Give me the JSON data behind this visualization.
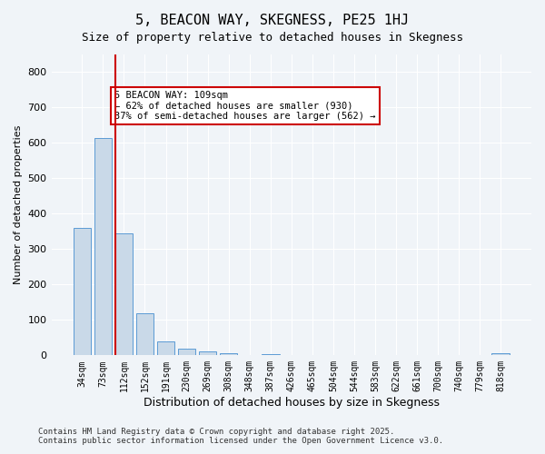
{
  "title": "5, BEACON WAY, SKEGNESS, PE25 1HJ",
  "subtitle": "Size of property relative to detached houses in Skegness",
  "xlabel": "Distribution of detached houses by size in Skegness",
  "ylabel": "Number of detached properties",
  "categories": [
    "34sqm",
    "73sqm",
    "112sqm",
    "152sqm",
    "191sqm",
    "230sqm",
    "269sqm",
    "308sqm",
    "348sqm",
    "387sqm",
    "426sqm",
    "465sqm",
    "504sqm",
    "544sqm",
    "583sqm",
    "622sqm",
    "661sqm",
    "700sqm",
    "740sqm",
    "779sqm",
    "818sqm"
  ],
  "values": [
    360,
    615,
    345,
    118,
    40,
    18,
    12,
    5,
    2,
    3,
    0,
    0,
    0,
    0,
    0,
    0,
    0,
    0,
    0,
    0,
    5
  ],
  "bar_color": "#c9d9e8",
  "bar_edge_color": "#5b9bd5",
  "vline_x": 2,
  "vline_color": "#cc0000",
  "annotation_text": "5 BEACON WAY: 109sqm\n← 62% of detached houses are smaller (930)\n37% of semi-detached houses are larger (562) →",
  "annotation_box_color": "#ffffff",
  "annotation_box_edge": "#cc0000",
  "background_color": "#f0f4f8",
  "grid_color": "#ffffff",
  "ylim": [
    0,
    850
  ],
  "yticks": [
    0,
    100,
    200,
    300,
    400,
    500,
    600,
    700,
    800
  ],
  "footer_line1": "Contains HM Land Registry data © Crown copyright and database right 2025.",
  "footer_line2": "Contains public sector information licensed under the Open Government Licence v3.0."
}
